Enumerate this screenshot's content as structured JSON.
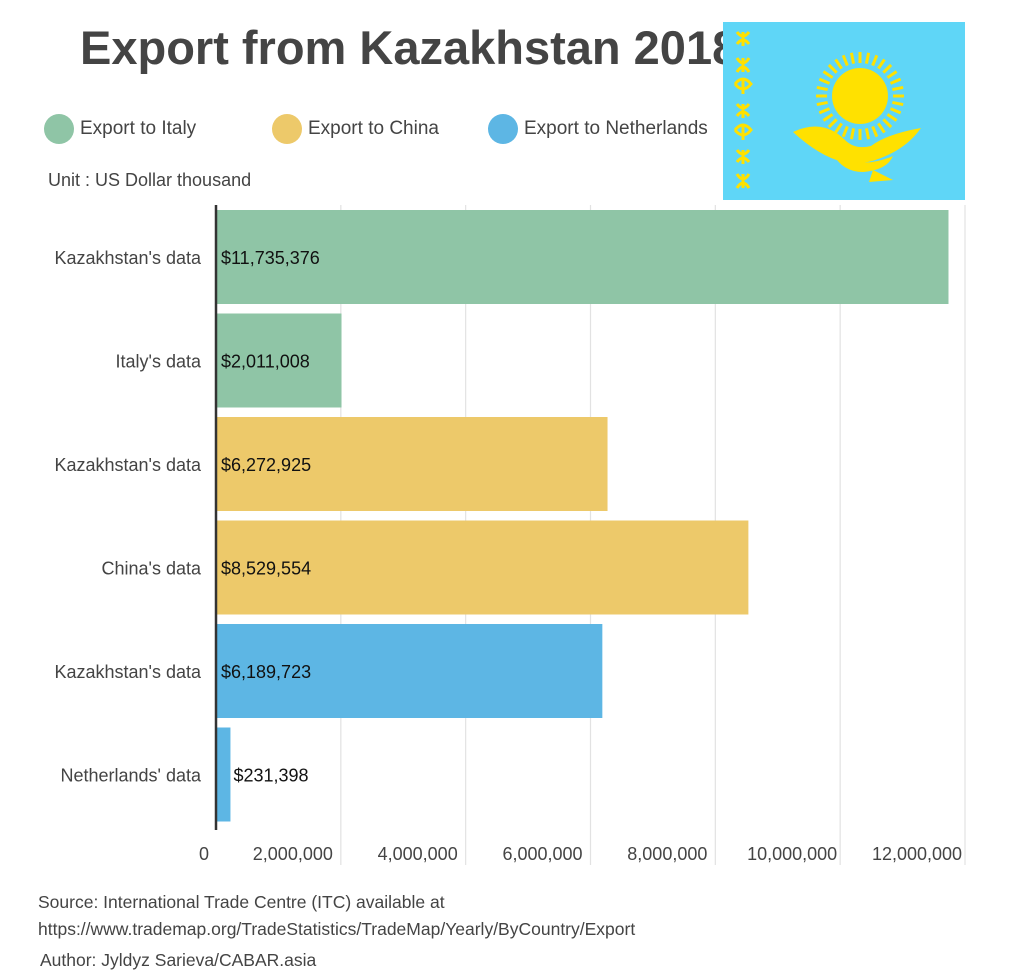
{
  "header": {
    "title": "Export from Kazakhstan 2018",
    "unit": "Unit : US Dollar thousand"
  },
  "legend": [
    {
      "label": "Export to Italy",
      "color": "#8fc5a6"
    },
    {
      "label": "Export to China",
      "color": "#edc96a"
    },
    {
      "label": "Export to Netherlands",
      "color": "#5db6e4"
    }
  ],
  "flag": {
    "icon": "kazakhstan-flag-icon",
    "background": "#5fd6f7",
    "emblem_color": "#ffe100"
  },
  "chart_data": {
    "type": "bar",
    "orientation": "horizontal",
    "categories": [
      "Kazakhstan's data",
      "Italy's data",
      "Kazakhstan's data",
      "China's data",
      "Kazakhstan's data",
      "Netherlands' data"
    ],
    "values": [
      11735376,
      2011008,
      6272925,
      8529554,
      6189723,
      231398
    ],
    "value_labels": [
      "$11,735,376",
      "$2,011,008",
      "$6,272,925",
      "$8,529,554",
      "$6,189,723",
      "$231,398"
    ],
    "bar_colors": [
      "#8fc5a6",
      "#8fc5a6",
      "#edc96a",
      "#edc96a",
      "#5db6e4",
      "#5db6e4"
    ],
    "x_ticks": [
      0,
      2000000,
      4000000,
      6000000,
      8000000,
      10000000,
      12000000
    ],
    "x_tick_labels": [
      "0",
      "2,000,000",
      "4,000,000",
      "6,000,000",
      "8,000,000",
      "10,000,000",
      "12,000,000"
    ],
    "xlim": [
      0,
      12000000
    ],
    "grid": true
  },
  "footer": {
    "source_line1": "Source: International Trade Centre (ITC) available at",
    "source_line2": "https://www.trademap.org/TradeStatistics/TradeMap/Yearly/ByCountry/Export",
    "author": "Author: Jyldyz Sarieva/CABAR.asia"
  }
}
